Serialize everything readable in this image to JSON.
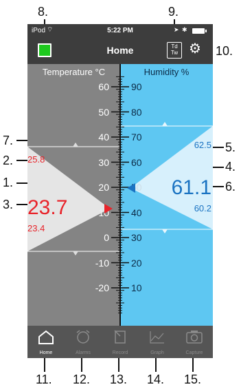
{
  "status_bar": {
    "carrier": "iPod",
    "time": "5:22 PM"
  },
  "nav": {
    "title": "Home",
    "td_tw_top": "Td",
    "td_tw_bottom": "Tw"
  },
  "temperature": {
    "header": "Temperature °C",
    "current": "23.7",
    "max": "25.8",
    "min": "23.4",
    "ticks": [
      "60",
      "50",
      "40",
      "30",
      "20",
      "10",
      "0",
      "-10",
      "-20"
    ]
  },
  "humidity": {
    "header": "Humidity %",
    "current": "61.1",
    "max": "62.5",
    "min": "60.2",
    "ticks": [
      "90",
      "80",
      "70",
      "60",
      "50",
      "40",
      "30",
      "20",
      "10"
    ]
  },
  "tabs": [
    {
      "label": "Home",
      "icon": "house-icon",
      "active": true
    },
    {
      "label": "Alarms",
      "icon": "alarm-clock-icon",
      "active": false
    },
    {
      "label": "Record",
      "icon": "record-icon",
      "active": false
    },
    {
      "label": "Graph",
      "icon": "graph-icon",
      "active": false
    },
    {
      "label": "Capture",
      "icon": "camera-icon",
      "active": false
    }
  ],
  "callouts": [
    "1.",
    "2.",
    "3.",
    "4.",
    "5.",
    "6.",
    "7.",
    "8.",
    "9.",
    "10.",
    "11.",
    "12.",
    "13.",
    "14.",
    "15."
  ],
  "colors": {
    "temp_red": "#e8232a",
    "hum_blue": "#1a73c2",
    "hum_panel": "#5ec7f2",
    "nav_bg": "#3d3d3d"
  }
}
